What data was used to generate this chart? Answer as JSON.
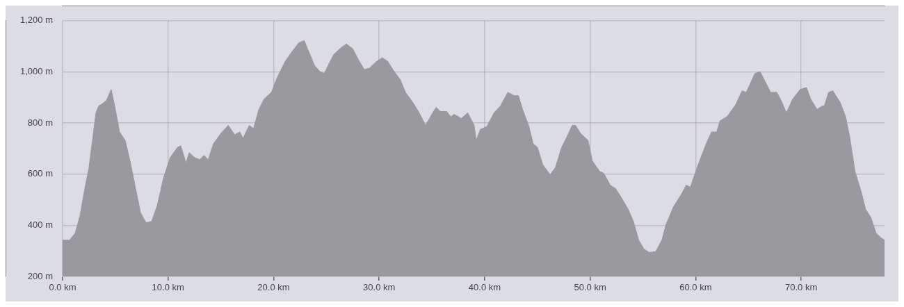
{
  "chart_data": {
    "type": "area",
    "x": [
      0,
      0.66,
      1.19,
      1.65,
      2.11,
      2.5,
      2.83,
      3.16,
      3.43,
      3.76,
      4.15,
      4.61,
      4.94,
      5.4,
      5.93,
      6.39,
      6.92,
      7.38,
      7.91,
      8.44,
      8.97,
      9.56,
      10.2,
      10.9,
      11.2,
      11.7,
      12.0,
      12.5,
      13.0,
      13.4,
      13.8,
      14.3,
      15.0,
      15.7,
      16.3,
      16.8,
      17.1,
      17.7,
      18.1,
      18.6,
      19.1,
      19.8,
      20.3,
      21.1,
      21.8,
      22.4,
      22.9,
      23.3,
      23.9,
      24.4,
      24.8,
      25.2,
      25.7,
      26.4,
      26.9,
      27.5,
      28.0,
      28.6,
      29.1,
      29.7,
      30.3,
      30.8,
      31.3,
      32.0,
      32.5,
      33.2,
      33.8,
      34.4,
      35.0,
      35.4,
      35.8,
      36.4,
      36.8,
      37.1,
      37.8,
      38.4,
      39.0,
      39.2,
      39.6,
      40.2,
      40.9,
      41.5,
      42.2,
      42.8,
      43.2,
      43.6,
      44.2,
      44.6,
      45.0,
      45.5,
      46.2,
      46.7,
      47.3,
      47.8,
      48.3,
      48.6,
      49.1,
      49.8,
      50.2,
      50.9,
      51.3,
      51.9,
      52.4,
      52.9,
      53.6,
      54.1,
      54.6,
      55.1,
      55.6,
      56.2,
      56.8,
      57.2,
      57.9,
      58.7,
      59.1,
      59.5,
      60.2,
      61.0,
      61.5,
      62.0,
      62.3,
      63.0,
      63.8,
      64.4,
      64.8,
      65.1,
      65.6,
      66.1,
      66.6,
      67.1,
      67.7,
      68.1,
      68.6,
      69.2,
      69.9,
      70.5,
      70.9,
      71.5,
      72.0,
      72.2,
      72.6,
      73.0,
      73.7,
      74.2,
      74.6,
      75.1,
      75.7,
      76.1,
      76.6,
      77.1,
      77.6,
      77.9
    ],
    "series": [
      {
        "color": "#9a999e",
        "values": [
          342,
          342,
          369,
          437,
          544,
          625,
          732,
          840,
          867,
          875,
          888,
          931,
          867,
          765,
          732,
          652,
          544,
          450,
          410,
          415,
          477,
          584,
          665,
          705,
          711,
          644,
          684,
          665,
          657,
          673,
          657,
          719,
          759,
          791,
          754,
          765,
          740,
          791,
          778,
          853,
          894,
          920,
          974,
          1041,
          1082,
          1114,
          1122,
          1082,
          1023,
          1001,
          993,
          1028,
          1068,
          1095,
          1109,
          1090,
          1050,
          1009,
          1015,
          1039,
          1055,
          1042,
          1009,
          969,
          920,
          880,
          840,
          791,
          834,
          861,
          845,
          845,
          824,
          834,
          818,
          840,
          791,
          732,
          775,
          786,
          840,
          867,
          920,
          907,
          907,
          853,
          786,
          719,
          705,
          638,
          598,
          625,
          705,
          746,
          791,
          791,
          759,
          732,
          652,
          611,
          603,
          557,
          544,
          512,
          463,
          415,
          342,
          307,
          294,
          297,
          342,
          404,
          472,
          525,
          557,
          549,
          633,
          719,
          765,
          765,
          808,
          826,
          872,
          926,
          920,
          947,
          993,
          1001,
          961,
          920,
          920,
          888,
          840,
          894,
          931,
          939,
          894,
          853,
          867,
          867,
          920,
          926,
          880,
          826,
          746,
          611,
          530,
          463,
          431,
          369,
          350,
          342
        ]
      }
    ],
    "xlim": [
      0,
      77.9
    ],
    "ylim": [
      200,
      1200
    ],
    "xticks": [
      {
        "value": 0,
        "label": "0.0 km"
      },
      {
        "value": 10,
        "label": "10.0 km"
      },
      {
        "value": 20,
        "label": "20.0 km"
      },
      {
        "value": 30,
        "label": "30.0 km"
      },
      {
        "value": 40,
        "label": "40.0 km"
      },
      {
        "value": 50,
        "label": "50.0 km"
      },
      {
        "value": 60,
        "label": "60.0 km"
      },
      {
        "value": 70,
        "label": "70.0 km"
      }
    ],
    "yticks": [
      {
        "value": 200,
        "label": "200 m"
      },
      {
        "value": 400,
        "label": "400 m"
      },
      {
        "value": 600,
        "label": "600 m"
      },
      {
        "value": 800,
        "label": "800 m"
      },
      {
        "value": 1000,
        "label": "1,000 m"
      },
      {
        "value": 1200,
        "label": "1,200 m"
      }
    ],
    "grid": true,
    "legend": false
  }
}
